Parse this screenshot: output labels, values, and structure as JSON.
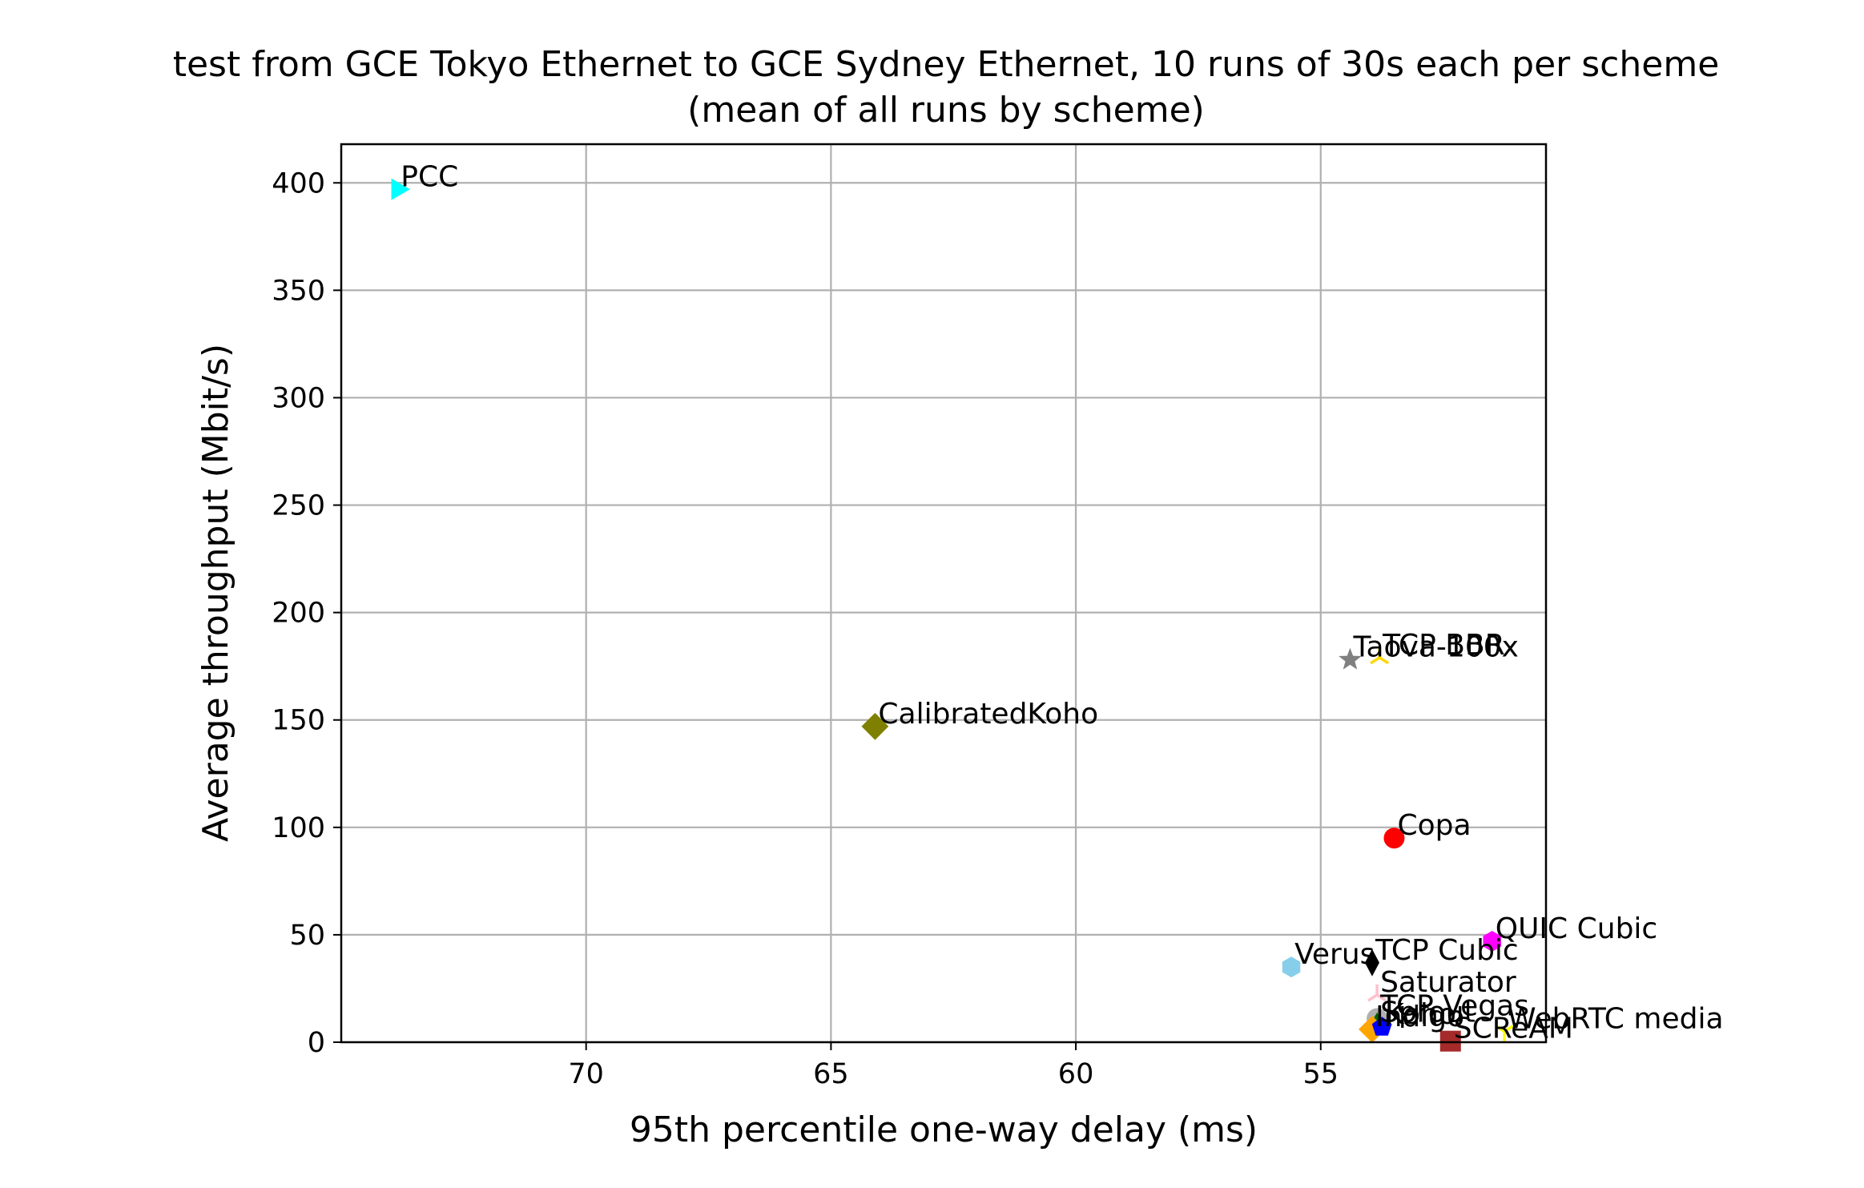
{
  "chart_data": {
    "type": "scatter",
    "title": "test from GCE Tokyo Ethernet to GCE Sydney Ethernet, 10 runs of 30s each per scheme",
    "subtitle": "(mean of all runs by scheme)",
    "xlabel": "95th percentile one-way delay (ms)",
    "ylabel": "Average throughput (Mbit/s)",
    "xlim": [
      75.0,
      50.4
    ],
    "ylim": [
      0,
      418
    ],
    "x_inverted": true,
    "grid": true,
    "xticks": [
      70,
      65,
      60,
      55
    ],
    "yticks": [
      0,
      50,
      100,
      150,
      200,
      250,
      300,
      350,
      400
    ],
    "xtick_labels": [
      "70",
      "65",
      "60",
      "55"
    ],
    "ytick_labels": [
      "0",
      "50",
      "100",
      "150",
      "200",
      "250",
      "300",
      "350",
      "400"
    ],
    "series": [
      {
        "name": "PCC",
        "x": 73.85,
        "y": 397,
        "color": "#00ffff",
        "marker": "triangle-right"
      },
      {
        "name": "TCP BBR",
        "x": 53.8,
        "y": 179,
        "color": "#ffd700",
        "marker": "tri-up"
      },
      {
        "name": "Taova-100x",
        "x": 54.4,
        "y": 178,
        "color": "#808080",
        "marker": "star"
      },
      {
        "name": "CalibratedKoho",
        "x": 64.1,
        "y": 147,
        "color": "#808000",
        "marker": "diamond"
      },
      {
        "name": "Copa",
        "x": 53.5,
        "y": 95,
        "color": "#ff0000",
        "marker": "circle"
      },
      {
        "name": "QUIC Cubic",
        "x": 51.5,
        "y": 47,
        "color": "#ff00ff",
        "marker": "hexagon"
      },
      {
        "name": "TCP Cubic",
        "x": 53.95,
        "y": 37,
        "color": "#000000",
        "marker": "thin-diamond"
      },
      {
        "name": "Verus",
        "x": 55.6,
        "y": 35,
        "color": "#87ceeb",
        "marker": "hexagon"
      },
      {
        "name": "Saturator",
        "x": 53.85,
        "y": 22,
        "color": "#ffc0cb",
        "marker": "tri-up"
      },
      {
        "name": "TCP Vegas",
        "x": 53.85,
        "y": 11,
        "color": "#b0b0b0",
        "marker": "circle"
      },
      {
        "name": "Sprout",
        "x": 53.85,
        "y": 8,
        "color": "#006400",
        "marker": "triangle-up"
      },
      {
        "name": "Indigo",
        "x": 53.95,
        "y": 6,
        "color": "#ffa500",
        "marker": "diamond"
      },
      {
        "name": "Koho",
        "x": 53.75,
        "y": 7,
        "color": "#0000ff",
        "marker": "pentagon"
      },
      {
        "name": "WebRTC media",
        "x": 51.25,
        "y": 5,
        "color": "#ffff00",
        "marker": "tri-down"
      },
      {
        "name": "SCReAM",
        "x": 52.35,
        "y": 0.5,
        "color": "#a52a2a",
        "marker": "square"
      }
    ]
  }
}
